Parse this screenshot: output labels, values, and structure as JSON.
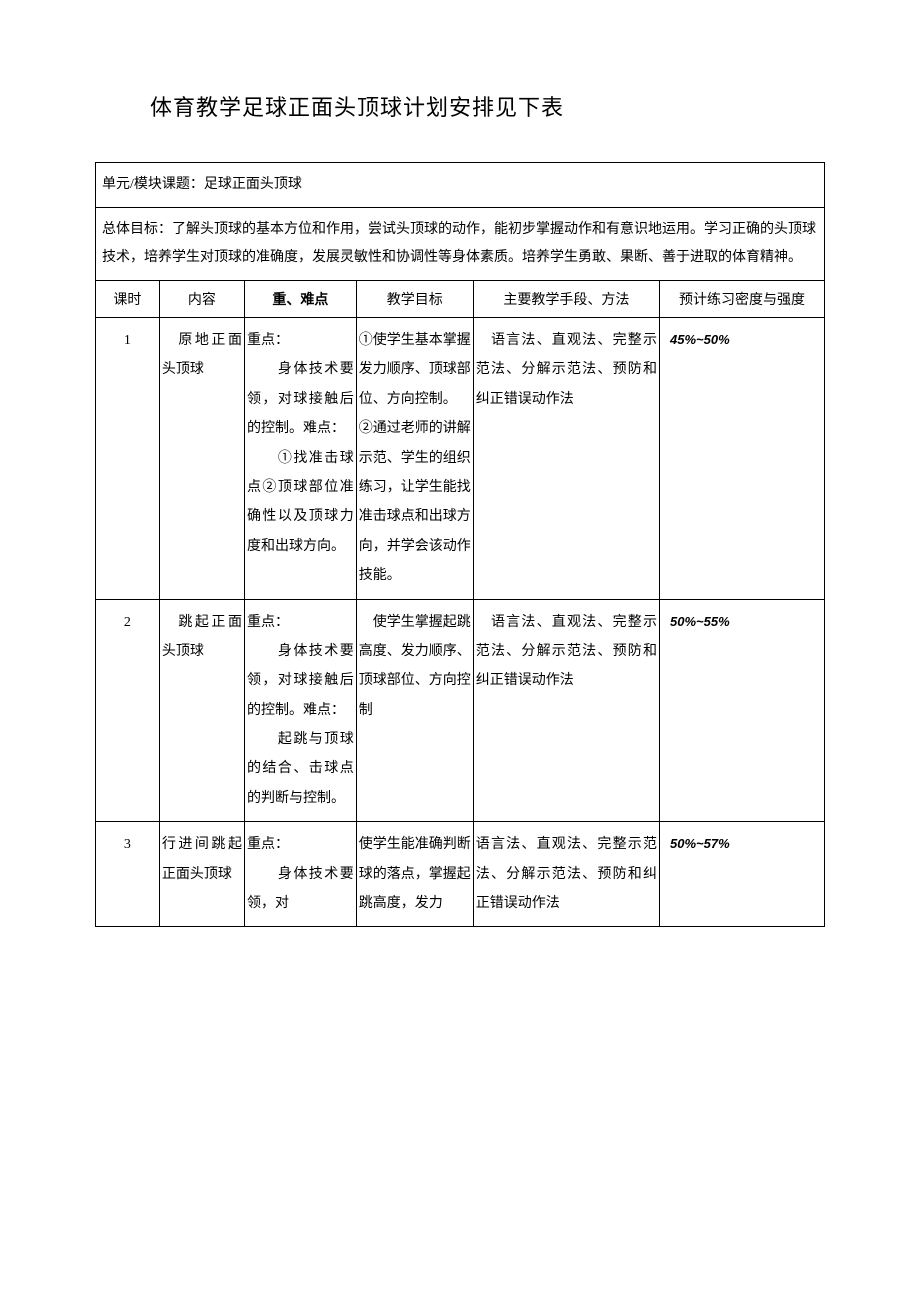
{
  "document": {
    "title": "体育教学足球正面头顶球计划安排见下表",
    "unit_topic": "单元/模块课题：足球正面头顶球",
    "overall_goal": "总体目标：了解头顶球的基本方位和作用，尝试头顶球的动作，能初步掌握动作和有意识地运用。学习正确的头顶球技术，培养学生对顶球的准确度，发展灵敏性和协调性等身体素质。培养学生勇敢、果断、善于进取的体育精神。"
  },
  "headers": {
    "lesson": "课时",
    "content": "内容",
    "points": "重、难点",
    "goals": "教学目标",
    "methods": "主要教学手段、方法",
    "intensity": "预计练习密度与强度"
  },
  "rows": [
    {
      "lesson": "1",
      "content": "　原地正面头顶球",
      "points": "重点：\n　　身体技术要领，对球接触后的控制。难点：\n　　①找准击球点②顶球部位准确性以及顶球力度和出球方向。",
      "goals": "①使学生基本掌握发力顺序、顶球部位、方向控制。\n②通过老师的讲解示范、学生的组织练习，让学生能找准击球点和出球方向，并学会该动作技能。",
      "methods": "　语言法、直观法、完整示范法、分解示范法、预防和纠正错误动作法",
      "intensity": "45%~50%"
    },
    {
      "lesson": "2",
      "content": "　跳起正面头顶球",
      "points": "重点：\n　　身体技术要领，对球接触后的控制。难点：\n　　起跳与顶球的结合、击球点的判断与控制。",
      "goals": "　使学生掌握起跳高度、发力顺序、顶球部位、方向控制",
      "methods": "　语言法、直观法、完整示范法、分解示范法、预防和纠正错误动作法",
      "intensity": "50%~55%"
    },
    {
      "lesson": "3",
      "content": "行进间跳起正面头顶球",
      "points": "重点：\n　　身体技术要领，对",
      "goals": "使学生能准确判断球的落点，掌握起跳高度，发力",
      "methods": "语言法、直观法、完整示范法、分解示范法、预防和纠正错误动作法",
      "intensity": "50%~57%"
    }
  ],
  "style": {
    "background_color": "#ffffff",
    "border_color": "#000000",
    "title_fontsize": 22,
    "body_fontsize": 14,
    "intensity_fontsize": 13,
    "line_height": 2.1
  }
}
